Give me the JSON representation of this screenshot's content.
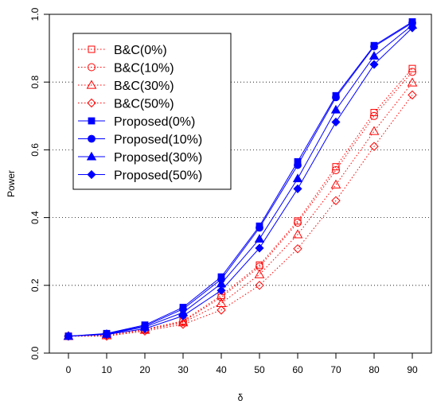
{
  "chart_data": {
    "type": "line",
    "xlabel": "δ",
    "ylabel": "Power",
    "xlim": [
      -5,
      95
    ],
    "ylim": [
      0,
      1
    ],
    "x": [
      0,
      10,
      20,
      30,
      40,
      50,
      60,
      70,
      80,
      90
    ],
    "x_ticks": [
      "0",
      "10",
      "20",
      "30",
      "40",
      "50",
      "60",
      "70",
      "80",
      "90"
    ],
    "y_ticks": [
      "0.0",
      "0.2",
      "0.4",
      "0.6",
      "0.8",
      "1.0"
    ],
    "grid": "horizontal dotted",
    "legend_position": "top-left",
    "series": [
      {
        "name": "B&C(0%)",
        "color": "#ff0000",
        "marker": "square-open",
        "line": "dotted",
        "values": [
          0.05,
          0.055,
          0.07,
          0.095,
          0.17,
          0.26,
          0.39,
          0.55,
          0.71,
          0.84
        ]
      },
      {
        "name": "B&C(10%)",
        "color": "#ff0000",
        "marker": "circle-open",
        "line": "dotted",
        "values": [
          0.05,
          0.055,
          0.07,
          0.093,
          0.165,
          0.255,
          0.385,
          0.54,
          0.7,
          0.83
        ]
      },
      {
        "name": "B&C(30%)",
        "color": "#ff0000",
        "marker": "triangle-open",
        "line": "dotted",
        "values": [
          0.05,
          0.052,
          0.068,
          0.09,
          0.147,
          0.232,
          0.35,
          0.497,
          0.655,
          0.798
        ]
      },
      {
        "name": "B&C(50%)",
        "color": "#ff0000",
        "marker": "diamond-open",
        "line": "dotted",
        "values": [
          0.05,
          0.05,
          0.065,
          0.085,
          0.127,
          0.2,
          0.308,
          0.45,
          0.61,
          0.762
        ]
      },
      {
        "name": "Proposed(0%)",
        "color": "#0000ff",
        "marker": "square-filled",
        "line": "solid",
        "values": [
          0.05,
          0.058,
          0.083,
          0.135,
          0.225,
          0.375,
          0.565,
          0.76,
          0.908,
          0.978
        ]
      },
      {
        "name": "Proposed(10%)",
        "color": "#0000ff",
        "marker": "circle-filled",
        "line": "solid",
        "values": [
          0.05,
          0.057,
          0.08,
          0.13,
          0.218,
          0.37,
          0.555,
          0.755,
          0.905,
          0.975
        ]
      },
      {
        "name": "Proposed(30%)",
        "color": "#0000ff",
        "marker": "triangle-filled",
        "line": "solid",
        "values": [
          0.05,
          0.056,
          0.077,
          0.12,
          0.205,
          0.337,
          0.515,
          0.718,
          0.877,
          0.968
        ]
      },
      {
        "name": "Proposed(50%)",
        "color": "#0000ff",
        "marker": "diamond-filled",
        "line": "solid",
        "values": [
          0.05,
          0.055,
          0.072,
          0.11,
          0.185,
          0.31,
          0.485,
          0.682,
          0.852,
          0.96
        ]
      }
    ]
  }
}
